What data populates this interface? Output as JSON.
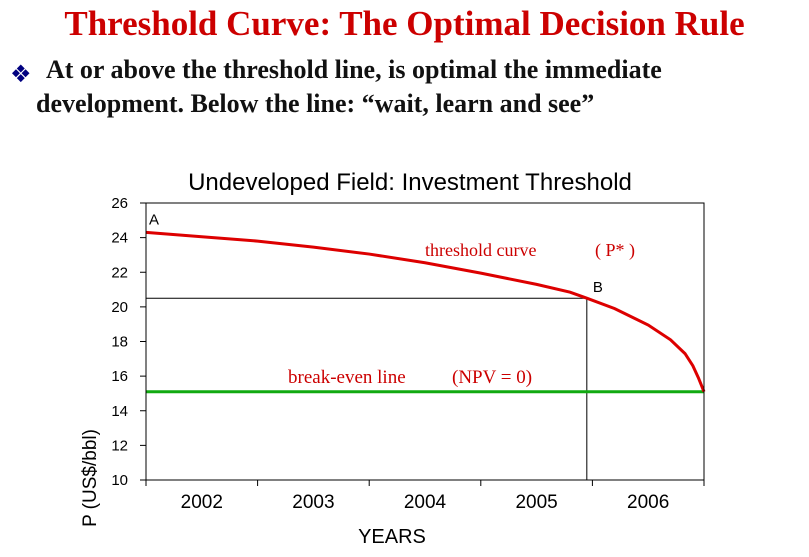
{
  "slide": {
    "title": "Threshold Curve: The Optimal Decision Rule",
    "bullet_icon": "diamond-bullet-icon",
    "bullet_line1": "At or above the threshold line, is optimal the immediate",
    "bullet_line2": "development. Below the line: “wait, learn and see”"
  },
  "chart_data": {
    "type": "line",
    "title": "Undeveloped Field: Investment Threshold",
    "xlabel": "YEARS",
    "ylabel": "P (US$/bbl)",
    "ylim": [
      10,
      26
    ],
    "xlim": [
      2001.5,
      2006.5
    ],
    "yticks": [
      10,
      12,
      14,
      16,
      18,
      20,
      22,
      24,
      26
    ],
    "categories": [
      "2002",
      "2003",
      "2004",
      "2005",
      "2006"
    ],
    "series": [
      {
        "name": "threshold curve ( P* )",
        "color": "#dd0000",
        "x": [
          2001.5,
          2001.7,
          2002.0,
          2002.5,
          2003.0,
          2003.5,
          2004.0,
          2004.5,
          2005.0,
          2005.3,
          2005.45,
          2005.7,
          2006.0,
          2006.2,
          2006.33,
          2006.4,
          2006.45,
          2006.5
        ],
        "values": [
          24.3,
          24.2,
          24.05,
          23.8,
          23.45,
          23.05,
          22.55,
          21.95,
          21.3,
          20.85,
          20.5,
          19.9,
          18.95,
          18.1,
          17.3,
          16.6,
          15.9,
          15.1
        ]
      },
      {
        "name": "break-even line (NPV = 0)",
        "color": "#11aa11",
        "x": [
          2001.5,
          2006.5
        ],
        "values": [
          15.1,
          15.1
        ]
      }
    ],
    "reference_lines": {
      "price": 20.5,
      "year": 2005.45
    },
    "annotations": [
      {
        "text": "A",
        "x": 2001.5,
        "y": 24.3
      },
      {
        "text": "B",
        "x": 2005.45,
        "y": 20.5
      }
    ],
    "series_labels": {
      "threshold_text": "threshold curve",
      "threshold_tag": "( P* )",
      "breakeven_text": "break-even line",
      "breakeven_tag": "(NPV = 0)"
    }
  }
}
